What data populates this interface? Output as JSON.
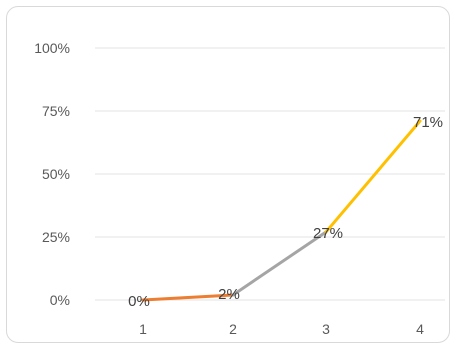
{
  "chart_data": {
    "type": "line",
    "title": "",
    "xlabel": "",
    "ylabel": "",
    "categories": [
      "1",
      "2",
      "3",
      "4"
    ],
    "values": [
      0,
      2,
      27,
      71
    ],
    "data_labels": [
      "0%",
      "2%",
      "27%",
      "71%"
    ],
    "segment_colors": [
      "#ED7D31",
      "#A5A5A5",
      "#FFC000"
    ],
    "ylim": [
      0,
      100
    ],
    "y_ticks": [
      0,
      25,
      50,
      75,
      100
    ],
    "y_tick_labels": [
      "0%",
      "25%",
      "50%",
      "75%",
      "100%"
    ],
    "grid": true,
    "gridline_color": "#e3e3e3",
    "legend": "none"
  }
}
